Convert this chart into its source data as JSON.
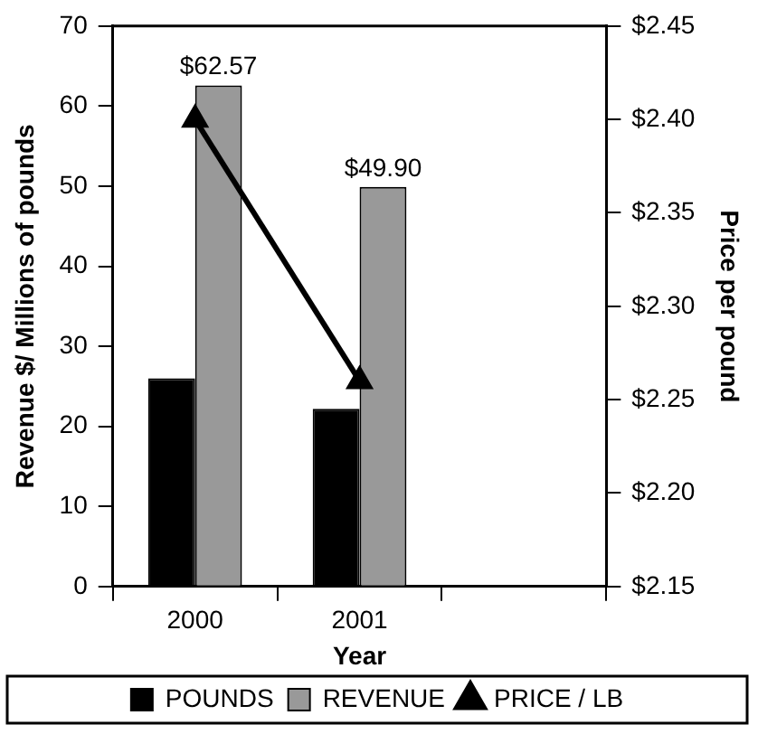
{
  "chart_data": {
    "type": "bar",
    "xlabel": "Year",
    "ylabel": "Revenue $/ Millions of pounds",
    "y2label": "Price per pound",
    "categories": [
      "2000",
      "2001",
      null
    ],
    "series": [
      {
        "name": "POUNDS",
        "color": "#000000",
        "values": [
          26,
          22.2,
          null
        ]
      },
      {
        "name": "REVENUE",
        "color": "#999999",
        "values": [
          62.57,
          49.9,
          null
        ],
        "value_labels": [
          "$62.57",
          "$49.90",
          null
        ]
      },
      {
        "name": "PRICE / LB",
        "type": "line",
        "axis": "y2",
        "color": "#000000",
        "marker": "triangle",
        "values": [
          2.4,
          2.26,
          null
        ]
      }
    ],
    "ylim": [
      0,
      70
    ],
    "yticks": [
      0,
      10,
      20,
      30,
      40,
      50,
      60,
      70
    ],
    "y2lim": [
      2.15,
      2.45
    ],
    "y2ticks": [
      {
        "value": 2.15,
        "label": "$2.15"
      },
      {
        "value": 2.2,
        "label": "$2.20"
      },
      {
        "value": 2.25,
        "label": "$2.25"
      },
      {
        "value": 2.3,
        "label": "$2.30"
      },
      {
        "value": 2.35,
        "label": "$2.35"
      },
      {
        "value": 2.4,
        "label": "$2.40"
      },
      {
        "value": 2.45,
        "label": "$2.45"
      }
    ],
    "grid": false,
    "legend": "bottom"
  }
}
